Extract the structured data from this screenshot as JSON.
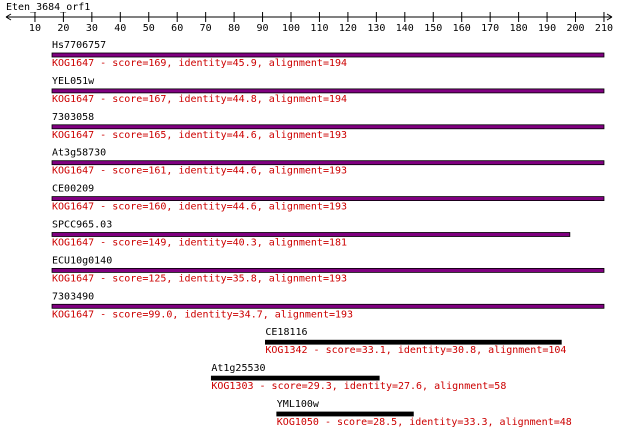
{
  "title": "Eten_3684_orf1",
  "axis": {
    "xlim": [
      0,
      213
    ],
    "xticks": [
      10,
      20,
      30,
      40,
      50,
      60,
      70,
      80,
      90,
      100,
      110,
      120,
      130,
      140,
      150,
      160,
      170,
      180,
      190,
      200,
      210
    ]
  },
  "hits": [
    {
      "name": "Hs7706757",
      "description": "KOG1647 - score=169, identity=45.9, alignment=194",
      "start": 16,
      "end": 210,
      "color": "#800080"
    },
    {
      "name": "YEL051w",
      "description": "KOG1647 - score=167, identity=44.8, alignment=194",
      "start": 16,
      "end": 210,
      "color": "#800080"
    },
    {
      "name": "7303058",
      "description": "KOG1647 - score=165, identity=44.6, alignment=193",
      "start": 16,
      "end": 210,
      "color": "#800080"
    },
    {
      "name": "At3g58730",
      "description": "KOG1647 - score=161, identity=44.6, alignment=193",
      "start": 16,
      "end": 210,
      "color": "#800080"
    },
    {
      "name": "CE00209",
      "description": "KOG1647 - score=160, identity=44.6, alignment=193",
      "start": 16,
      "end": 210,
      "color": "#800080"
    },
    {
      "name": "SPCC965.03",
      "description": "KOG1647 - score=149, identity=40.3, alignment=181",
      "start": 16,
      "end": 198,
      "color": "#800080"
    },
    {
      "name": "ECU10g0140",
      "description": "KOG1647 - score=125, identity=35.8, alignment=193",
      "start": 16,
      "end": 210,
      "color": "#800080"
    },
    {
      "name": "7303490",
      "description": "KOG1647 - score=99.0, identity=34.7, alignment=193",
      "start": 16,
      "end": 210,
      "color": "#800080"
    },
    {
      "name": "CE18116",
      "description": "KOG1342 - score=33.1, identity=30.8, alignment=104",
      "start": 91,
      "end": 195,
      "color": "#000000"
    },
    {
      "name": "At1g25530",
      "description": "KOG1303 - score=29.3, identity=27.6, alignment=58",
      "start": 72,
      "end": 131,
      "color": "#000000"
    },
    {
      "name": "YML100w",
      "description": "KOG1050 - score=28.5, identity=33.3, alignment=48",
      "start": 95,
      "end": 143,
      "color": "#000000"
    }
  ]
}
